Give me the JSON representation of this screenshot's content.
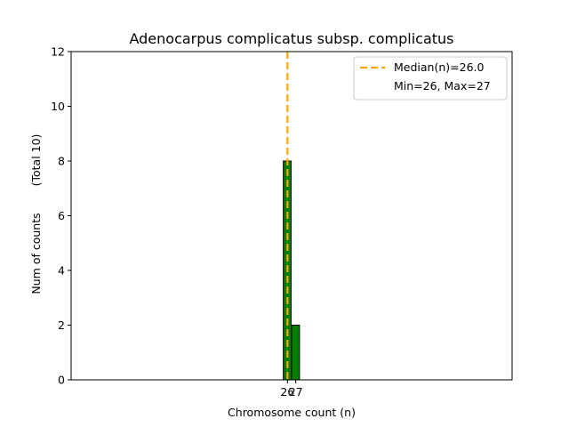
{
  "chart_data": {
    "type": "bar",
    "title": "Adenocarpus complicatus subsp. complicatus",
    "xlabel": "Chromosome count (n)",
    "ylabel": "Num of counts",
    "ylabel_note": "(Total 10)",
    "xticks": [
      26,
      27
    ],
    "yticks": [
      0,
      2,
      4,
      6,
      8,
      10,
      12
    ],
    "ylim": [
      0,
      12
    ],
    "xlim": [
      0,
      53
    ],
    "bars": [
      {
        "x": 26,
        "value": 8
      },
      {
        "x": 27,
        "value": 2
      }
    ],
    "bar_color": "#008000",
    "median_line": {
      "x": 26.0,
      "color": "#ffa500"
    },
    "legend": {
      "placement": "top-right",
      "entries": [
        "Median(n)=26.0",
        "Min=26, Max=27"
      ]
    },
    "grid": false
  }
}
